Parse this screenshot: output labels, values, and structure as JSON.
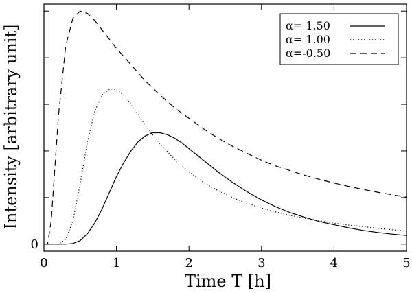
{
  "chart_data": {
    "type": "line",
    "title": "",
    "xlabel": "Time T [h]",
    "ylabel": "Intensity [arbitrary unit]",
    "xlim": [
      0,
      5
    ],
    "ylim": [
      -0.03,
      1.03
    ],
    "x_ticks": [
      0,
      1,
      2,
      3,
      4,
      5
    ],
    "x_tick_labels": [
      "0",
      "1",
      "2",
      "3",
      "4",
      "5"
    ],
    "y_ticks": [
      0
    ],
    "y_tick_labels": [
      "0"
    ],
    "y_minor_ticks": [
      0.2,
      0.4,
      0.6,
      0.8,
      1.0
    ],
    "grid": false,
    "legend_position": "top-right",
    "series": [
      {
        "name": "α= 1.50",
        "style": "solid",
        "x": [
          0,
          0.2,
          0.3,
          0.4,
          0.5,
          0.6,
          0.7,
          0.8,
          0.9,
          1.0,
          1.1,
          1.2,
          1.3,
          1.4,
          1.5,
          1.6,
          1.7,
          1.8,
          1.9,
          2.0,
          2.2,
          2.4,
          2.6,
          2.8,
          3.0,
          3.2,
          3.4,
          3.6,
          3.8,
          4.0,
          4.2,
          4.4,
          4.6,
          4.8,
          5.0
        ],
        "y": [
          0.0,
          0.0,
          0.0,
          0.003,
          0.015,
          0.045,
          0.09,
          0.15,
          0.22,
          0.29,
          0.35,
          0.4,
          0.44,
          0.465,
          0.478,
          0.478,
          0.47,
          0.455,
          0.435,
          0.41,
          0.36,
          0.31,
          0.265,
          0.225,
          0.19,
          0.16,
          0.135,
          0.115,
          0.097,
          0.083,
          0.07,
          0.059,
          0.05,
          0.043,
          0.037
        ]
      },
      {
        "name": "α= 1.00",
        "style": "dotted",
        "x": [
          0,
          0.2,
          0.3,
          0.4,
          0.5,
          0.6,
          0.7,
          0.8,
          0.9,
          0.95,
          1.0,
          1.1,
          1.2,
          1.3,
          1.4,
          1.5,
          1.6,
          1.8,
          2.0,
          2.2,
          2.4,
          2.6,
          2.8,
          3.0,
          3.2,
          3.4,
          3.6,
          3.8,
          4.0,
          4.2,
          4.4,
          4.6,
          4.8,
          5.0
        ],
        "y": [
          0.0,
          0.0,
          0.02,
          0.1,
          0.26,
          0.44,
          0.57,
          0.64,
          0.663,
          0.667,
          0.663,
          0.64,
          0.6,
          0.555,
          0.51,
          0.47,
          0.43,
          0.365,
          0.31,
          0.265,
          0.23,
          0.2,
          0.175,
          0.155,
          0.138,
          0.123,
          0.111,
          0.1,
          0.09,
          0.082,
          0.075,
          0.068,
          0.062,
          0.056
        ]
      },
      {
        "name": "α=-0.50",
        "style": "dashed",
        "x": [
          0,
          0.05,
          0.1,
          0.2,
          0.3,
          0.4,
          0.5,
          0.6,
          0.7,
          0.8,
          0.9,
          1.0,
          1.2,
          1.4,
          1.6,
          1.8,
          2.0,
          2.2,
          2.4,
          2.6,
          2.8,
          3.0,
          3.2,
          3.4,
          3.6,
          3.8,
          4.0,
          4.2,
          4.4,
          4.6,
          4.8,
          5.0
        ],
        "y": [
          0.0,
          0.0,
          0.1,
          0.55,
          0.85,
          0.97,
          1.0,
          0.99,
          0.96,
          0.92,
          0.88,
          0.84,
          0.77,
          0.7,
          0.64,
          0.585,
          0.54,
          0.495,
          0.455,
          0.42,
          0.39,
          0.36,
          0.335,
          0.315,
          0.295,
          0.278,
          0.262,
          0.248,
          0.235,
          0.223,
          0.212,
          0.202
        ]
      }
    ]
  }
}
